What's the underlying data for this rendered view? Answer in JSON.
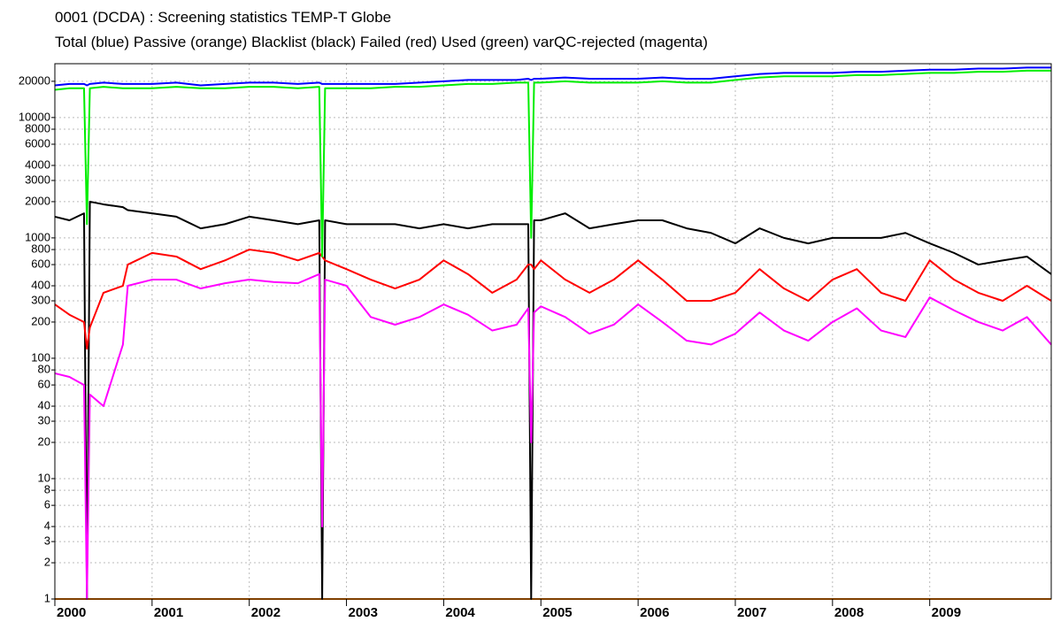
{
  "chart_data": {
    "type": "line",
    "title": "0001 (DCDA)  : Screening statistics  TEMP-T  Globe",
    "subtitle": "Total (blue) Passive (orange) Blacklist (black) Failed (red) Used (green) varQC-rejected (magenta)",
    "log_y": true,
    "grid": true,
    "xlim": [
      2000,
      2010.25
    ],
    "ylim": [
      1,
      28000
    ],
    "xticks": [
      2000,
      2001,
      2002,
      2003,
      2004,
      2005,
      2006,
      2007,
      2008,
      2009
    ],
    "yticks": [
      1,
      2,
      3,
      4,
      6,
      8,
      10,
      20,
      30,
      40,
      60,
      80,
      100,
      200,
      300,
      400,
      600,
      800,
      1000,
      2000,
      3000,
      4000,
      6000,
      8000,
      10000,
      20000
    ],
    "x": [
      2000,
      2000.15,
      2000.3,
      2000.33,
      2000.36,
      2000.5,
      2000.7,
      2000.75,
      2001,
      2001.25,
      2001.5,
      2001.75,
      2002,
      2002.25,
      2002.5,
      2002.72,
      2002.75,
      2002.78,
      2003,
      2003.25,
      2003.5,
      2003.75,
      2004,
      2004.25,
      2004.5,
      2004.75,
      2004.87,
      2004.9,
      2004.93,
      2005,
      2005.25,
      2005.5,
      2005.75,
      2006,
      2006.25,
      2006.5,
      2006.75,
      2007,
      2007.25,
      2007.5,
      2007.75,
      2008,
      2008.25,
      2008.5,
      2008.75,
      2009,
      2009.25,
      2009.5,
      2009.75,
      2010,
      2010.25
    ],
    "series": [
      {
        "name": "Total",
        "color": "#0000ff",
        "values": [
          18500,
          19000,
          19000,
          18500,
          19000,
          19500,
          19000,
          19000,
          19000,
          19500,
          18500,
          19000,
          19500,
          19500,
          19000,
          19500,
          19000,
          19000,
          19000,
          19000,
          19000,
          19500,
          20000,
          20500,
          20500,
          20500,
          21000,
          20500,
          21000,
          21000,
          21500,
          21000,
          21000,
          21000,
          21500,
          21000,
          21000,
          22000,
          23000,
          23500,
          23500,
          23500,
          24000,
          24000,
          24500,
          25000,
          25000,
          25500,
          25500,
          26000,
          26000
        ]
      },
      {
        "name": "Passive",
        "color": "#ff8000",
        "values": [
          1,
          1,
          1,
          1,
          1,
          1,
          1,
          1,
          1,
          1,
          1,
          1,
          1,
          1,
          1,
          1,
          1,
          1,
          1,
          1,
          1,
          1,
          1,
          1,
          1,
          1,
          1,
          1,
          1,
          1,
          1,
          1,
          1,
          1,
          1,
          1,
          1,
          1,
          1,
          1,
          1,
          1,
          1,
          1,
          1,
          1,
          1,
          1,
          1,
          1,
          1
        ]
      },
      {
        "name": "Blacklist",
        "color": "#000000",
        "values": [
          1500,
          1400,
          1600,
          1,
          2000,
          1900,
          1800,
          1700,
          1600,
          1500,
          1200,
          1300,
          1500,
          1400,
          1300,
          1400,
          1,
          1400,
          1300,
          1300,
          1300,
          1200,
          1300,
          1200,
          1300,
          1300,
          1300,
          1,
          1400,
          1400,
          1600,
          1200,
          1300,
          1400,
          1400,
          1200,
          1100,
          900,
          1200,
          1000,
          900,
          1000,
          1000,
          1000,
          1100,
          900,
          750,
          600,
          650,
          700,
          500
        ]
      },
      {
        "name": "Failed",
        "color": "#ff0000",
        "values": [
          280,
          230,
          200,
          120,
          180,
          350,
          400,
          600,
          750,
          700,
          550,
          650,
          800,
          750,
          650,
          750,
          700,
          650,
          550,
          450,
          380,
          450,
          650,
          500,
          350,
          450,
          600,
          600,
          550,
          650,
          450,
          350,
          450,
          650,
          450,
          300,
          300,
          350,
          550,
          380,
          300,
          450,
          550,
          350,
          300,
          650,
          450,
          350,
          300,
          400,
          300
        ]
      },
      {
        "name": "Used",
        "color": "#00ee00",
        "values": [
          17000,
          17500,
          17500,
          1300,
          17500,
          18000,
          17500,
          17500,
          17500,
          18000,
          17500,
          17500,
          18000,
          18000,
          17500,
          18000,
          700,
          17500,
          17500,
          17500,
          18000,
          18000,
          18500,
          19000,
          19000,
          19500,
          19500,
          1000,
          19500,
          19500,
          20000,
          19500,
          19500,
          19500,
          20000,
          19500,
          19500,
          20500,
          21500,
          22000,
          22000,
          22000,
          22500,
          22500,
          23000,
          23500,
          23500,
          24000,
          24000,
          24500,
          24500
        ]
      },
      {
        "name": "varQC-rejected",
        "color": "#ff00ff",
        "values": [
          75,
          70,
          60,
          1,
          50,
          40,
          130,
          400,
          450,
          450,
          380,
          420,
          450,
          430,
          420,
          500,
          4,
          450,
          400,
          220,
          190,
          220,
          280,
          230,
          170,
          190,
          260,
          20,
          240,
          270,
          220,
          160,
          190,
          280,
          200,
          140,
          130,
          160,
          240,
          170,
          140,
          200,
          260,
          170,
          150,
          320,
          250,
          200,
          170,
          220,
          130
        ]
      }
    ]
  }
}
